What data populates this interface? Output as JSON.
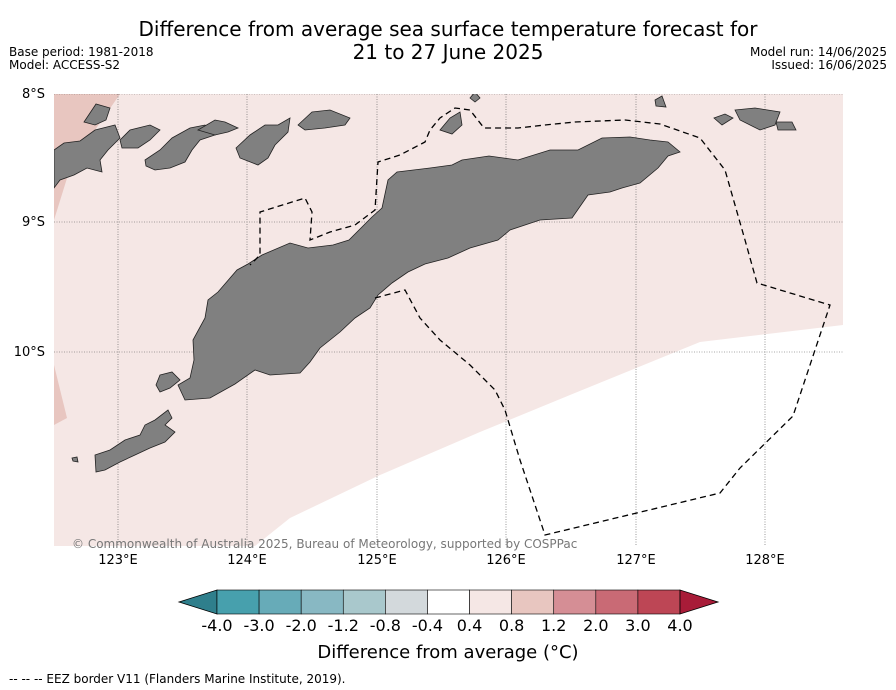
{
  "title": {
    "line1": "Difference from average sea surface temperature forecast for",
    "line2": "21 to 27 June 2025"
  },
  "meta_left": {
    "base_period": "Base period: 1981-2018",
    "model": "Model: ACCESS-S2"
  },
  "meta_right": {
    "model_run": "Model run: 14/06/2025",
    "issued": "Issued: 16/06/2025"
  },
  "map": {
    "lat_labels": [
      "8°S",
      "9°S",
      "10°S"
    ],
    "lon_labels": [
      "123°E",
      "124°E",
      "125°E",
      "126°E",
      "127°E",
      "128°E"
    ],
    "copyright": "© Commonwealth of Australia 2025, Bureau of Meteorology, supported by COSPPac",
    "colors": {
      "land": "#808080",
      "anomaly_0_4_to_0_8": "#f5e7e5",
      "anomaly_0_8_to_1_2": "#e8c6c0",
      "eez_line": "#000000"
    }
  },
  "colorbar": {
    "ticks": [
      "-4.0",
      "-3.0",
      "-2.0",
      "-1.2",
      "-0.8",
      "-0.4",
      "0.4",
      "0.8",
      "1.2",
      "2.0",
      "3.0",
      "4.0"
    ],
    "colors": [
      "#2f7f8c",
      "#47a0ad",
      "#67abb8",
      "#88b8c3",
      "#a9c8cc",
      "#d3d9dc",
      "#ffffff",
      "#f5e7e5",
      "#e8c6c0",
      "#d58e95",
      "#c96a75",
      "#bd4655",
      "#a81c38"
    ],
    "label": "Difference from average (°C)"
  },
  "legend": {
    "eez": "--  --  -- EEZ border V11 (Flanders Marine Institute, 2019)."
  }
}
